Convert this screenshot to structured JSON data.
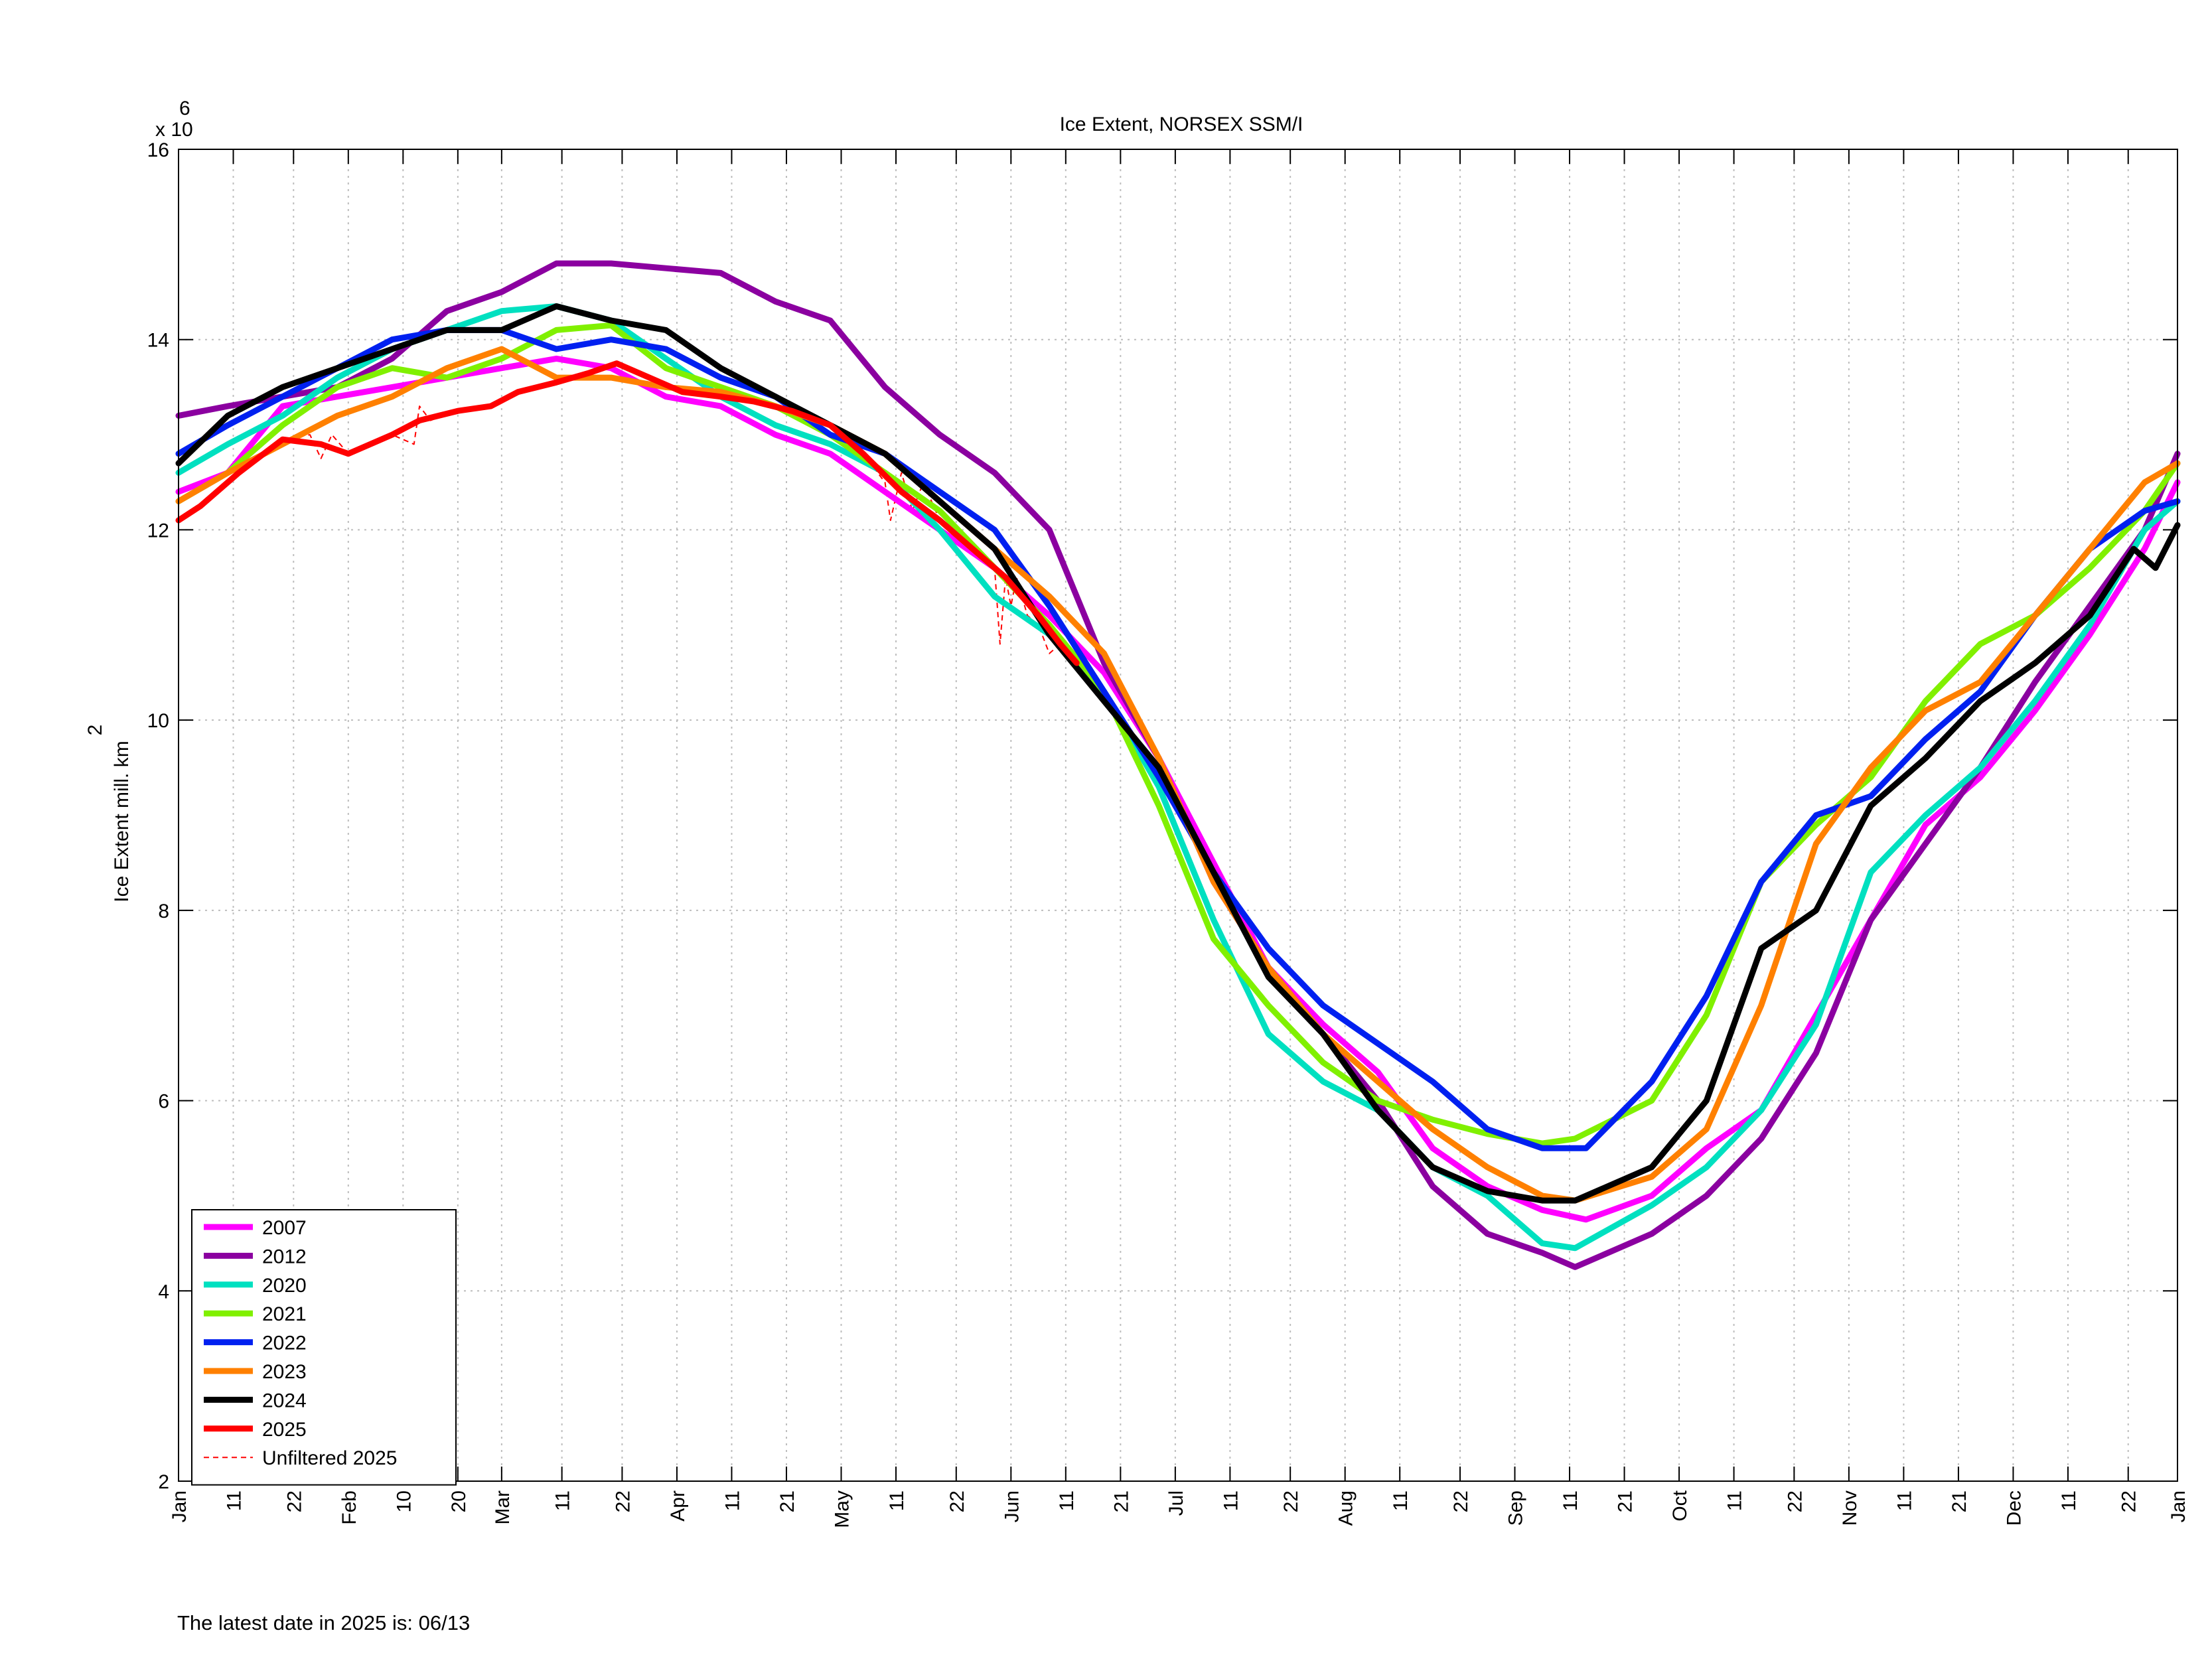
{
  "footer": {
    "latest_date_text": "The latest date in 2025 is: 06/13"
  },
  "chart_data": {
    "type": "line",
    "title": "Ice Extent, NORSEX SSM/I",
    "xlabel": "",
    "ylabel": "Ice Extent mill. km",
    "ylabel_superscript": "2",
    "y_exponent_text": "x 10",
    "y_exponent_power": "6",
    "xlim": [
      1,
      366
    ],
    "ylim": [
      2000000,
      16000000
    ],
    "grid": true,
    "legend_position": "bottom-left",
    "y_ticks": [
      {
        "value": 2000000,
        "label": "2"
      },
      {
        "value": 4000000,
        "label": "4"
      },
      {
        "value": 6000000,
        "label": "6"
      },
      {
        "value": 8000000,
        "label": "8"
      },
      {
        "value": 10000000,
        "label": "10"
      },
      {
        "value": 12000000,
        "label": "12"
      },
      {
        "value": 14000000,
        "label": "14"
      },
      {
        "value": 16000000,
        "label": "16"
      }
    ],
    "x_ticks": [
      {
        "day": 1,
        "label": "Jan"
      },
      {
        "day": 11,
        "label": "11"
      },
      {
        "day": 22,
        "label": "22"
      },
      {
        "day": 32,
        "label": "Feb"
      },
      {
        "day": 42,
        "label": "10"
      },
      {
        "day": 52,
        "label": "20"
      },
      {
        "day": 60,
        "label": "Mar"
      },
      {
        "day": 71,
        "label": "11"
      },
      {
        "day": 82,
        "label": "22"
      },
      {
        "day": 92,
        "label": "Apr"
      },
      {
        "day": 102,
        "label": "11"
      },
      {
        "day": 112,
        "label": "21"
      },
      {
        "day": 122,
        "label": "May"
      },
      {
        "day": 132,
        "label": "11"
      },
      {
        "day": 143,
        "label": "22"
      },
      {
        "day": 153,
        "label": "Jun"
      },
      {
        "day": 163,
        "label": "11"
      },
      {
        "day": 173,
        "label": "21"
      },
      {
        "day": 183,
        "label": "Jul"
      },
      {
        "day": 193,
        "label": "11"
      },
      {
        "day": 204,
        "label": "22"
      },
      {
        "day": 214,
        "label": "Aug"
      },
      {
        "day": 224,
        "label": "11"
      },
      {
        "day": 235,
        "label": "22"
      },
      {
        "day": 245,
        "label": "Sep"
      },
      {
        "day": 255,
        "label": "11"
      },
      {
        "day": 265,
        "label": "21"
      },
      {
        "day": 275,
        "label": "Oct"
      },
      {
        "day": 285,
        "label": "11"
      },
      {
        "day": 296,
        "label": "22"
      },
      {
        "day": 306,
        "label": "Nov"
      },
      {
        "day": 316,
        "label": "11"
      },
      {
        "day": 326,
        "label": "21"
      },
      {
        "day": 336,
        "label": "Dec"
      },
      {
        "day": 346,
        "label": "11"
      },
      {
        "day": 357,
        "label": "22"
      },
      {
        "day": 366,
        "label": "Jan"
      }
    ],
    "series": [
      {
        "name": "2007",
        "color": "#ff00ff",
        "width": 3,
        "x": [
          1,
          10,
          20,
          30,
          40,
          50,
          60,
          70,
          80,
          90,
          100,
          110,
          120,
          130,
          140,
          150,
          160,
          170,
          180,
          190,
          200,
          210,
          220,
          230,
          240,
          250,
          258,
          270,
          280,
          290,
          300,
          310,
          320,
          330,
          340,
          350,
          360,
          366
        ],
        "y": [
          12.4,
          12.6,
          13.3,
          13.4,
          13.5,
          13.6,
          13.7,
          13.8,
          13.7,
          13.4,
          13.3,
          13.0,
          12.8,
          12.4,
          12.0,
          11.6,
          11.1,
          10.5,
          9.6,
          8.5,
          7.4,
          6.8,
          6.3,
          5.5,
          5.1,
          4.85,
          4.75,
          5.0,
          5.5,
          5.9,
          6.9,
          7.9,
          8.9,
          9.4,
          10.1,
          10.9,
          11.8,
          12.5
        ]
      },
      {
        "name": "2012",
        "color": "#8b00a0",
        "width": 3,
        "x": [
          1,
          10,
          20,
          30,
          40,
          50,
          60,
          70,
          80,
          90,
          100,
          110,
          120,
          130,
          140,
          150,
          160,
          170,
          180,
          190,
          200,
          210,
          220,
          230,
          240,
          250,
          256,
          270,
          280,
          290,
          300,
          310,
          320,
          330,
          340,
          350,
          360,
          366
        ],
        "y": [
          13.2,
          13.3,
          13.4,
          13.5,
          13.8,
          14.3,
          14.5,
          14.8,
          14.8,
          14.75,
          14.7,
          14.4,
          14.2,
          13.5,
          13.0,
          12.6,
          12.0,
          10.6,
          9.6,
          8.3,
          7.4,
          6.7,
          6.0,
          5.1,
          4.6,
          4.4,
          4.25,
          4.6,
          5.0,
          5.6,
          6.5,
          7.9,
          8.7,
          9.5,
          10.4,
          11.2,
          12.0,
          12.8
        ]
      },
      {
        "name": "2020",
        "color": "#00e0c0",
        "width": 3,
        "x": [
          1,
          10,
          20,
          30,
          40,
          50,
          60,
          70,
          80,
          90,
          100,
          110,
          120,
          130,
          140,
          150,
          160,
          170,
          180,
          190,
          200,
          210,
          220,
          230,
          240,
          250,
          256,
          270,
          280,
          290,
          300,
          310,
          320,
          330,
          340,
          350,
          360,
          366
        ],
        "y": [
          12.6,
          12.9,
          13.2,
          13.6,
          13.9,
          14.1,
          14.3,
          14.35,
          14.2,
          13.8,
          13.4,
          13.1,
          12.9,
          12.6,
          12.0,
          11.3,
          10.9,
          10.3,
          9.3,
          7.9,
          6.7,
          6.2,
          5.9,
          5.3,
          5.0,
          4.5,
          4.45,
          4.9,
          5.3,
          5.9,
          6.8,
          8.4,
          9.0,
          9.5,
          10.2,
          11.0,
          12.0,
          12.3
        ]
      },
      {
        "name": "2021",
        "color": "#80f000",
        "width": 3,
        "x": [
          1,
          10,
          20,
          30,
          40,
          50,
          60,
          70,
          80,
          90,
          100,
          110,
          120,
          130,
          140,
          150,
          160,
          170,
          180,
          190,
          200,
          210,
          220,
          230,
          240,
          250,
          256,
          270,
          280,
          290,
          300,
          310,
          320,
          330,
          340,
          350,
          360,
          366
        ],
        "y": [
          12.3,
          12.6,
          13.1,
          13.5,
          13.7,
          13.6,
          13.8,
          14.1,
          14.15,
          13.7,
          13.5,
          13.3,
          13.0,
          12.6,
          12.2,
          11.6,
          11.0,
          10.3,
          9.1,
          7.7,
          7.0,
          6.4,
          6.0,
          5.8,
          5.65,
          5.55,
          5.6,
          6.0,
          6.9,
          8.3,
          8.9,
          9.4,
          10.2,
          10.8,
          11.1,
          11.6,
          12.2,
          12.7
        ]
      },
      {
        "name": "2022",
        "color": "#0020f0",
        "width": 3,
        "x": [
          1,
          10,
          20,
          30,
          40,
          50,
          60,
          70,
          80,
          90,
          100,
          110,
          120,
          130,
          140,
          150,
          160,
          170,
          180,
          190,
          200,
          210,
          220,
          230,
          240,
          250,
          258,
          270,
          280,
          290,
          300,
          310,
          320,
          330,
          340,
          350,
          360,
          366
        ],
        "y": [
          12.8,
          13.1,
          13.4,
          13.7,
          14.0,
          14.1,
          14.1,
          13.9,
          14.0,
          13.9,
          13.6,
          13.4,
          13.0,
          12.8,
          12.4,
          12.0,
          11.2,
          10.3,
          9.4,
          8.4,
          7.6,
          7.0,
          6.6,
          6.2,
          5.7,
          5.5,
          5.5,
          6.2,
          7.1,
          8.3,
          9.0,
          9.2,
          9.8,
          10.3,
          11.1,
          11.8,
          12.2,
          12.3
        ]
      },
      {
        "name": "2023",
        "color": "#ff8000",
        "width": 3,
        "x": [
          1,
          10,
          20,
          30,
          40,
          50,
          60,
          70,
          80,
          90,
          100,
          110,
          120,
          130,
          140,
          150,
          160,
          170,
          180,
          190,
          200,
          210,
          220,
          230,
          240,
          250,
          256,
          270,
          280,
          290,
          300,
          310,
          320,
          330,
          340,
          350,
          360,
          366
        ],
        "y": [
          12.3,
          12.6,
          12.9,
          13.2,
          13.4,
          13.7,
          13.9,
          13.6,
          13.6,
          13.5,
          13.45,
          13.3,
          13.1,
          12.8,
          12.3,
          11.8,
          11.3,
          10.7,
          9.6,
          8.3,
          7.4,
          6.7,
          6.2,
          5.7,
          5.3,
          5.0,
          4.95,
          5.2,
          5.7,
          7.0,
          8.7,
          9.5,
          10.1,
          10.4,
          11.1,
          11.8,
          12.5,
          12.7
        ]
      },
      {
        "name": "2024",
        "color": "#000000",
        "width": 3,
        "x": [
          1,
          10,
          20,
          30,
          40,
          50,
          60,
          70,
          80,
          90,
          100,
          110,
          120,
          130,
          140,
          150,
          160,
          170,
          180,
          190,
          200,
          210,
          220,
          230,
          240,
          250,
          256,
          270,
          280,
          290,
          300,
          310,
          320,
          330,
          340,
          350,
          358,
          362,
          366
        ],
        "y": [
          12.7,
          13.2,
          13.5,
          13.7,
          13.9,
          14.1,
          14.1,
          14.35,
          14.2,
          14.1,
          13.7,
          13.4,
          13.1,
          12.8,
          12.3,
          11.8,
          10.9,
          10.2,
          9.5,
          8.4,
          7.3,
          6.7,
          5.9,
          5.3,
          5.05,
          4.95,
          4.95,
          5.3,
          6.0,
          7.6,
          8.0,
          9.1,
          9.6,
          10.2,
          10.6,
          11.1,
          11.8,
          11.6,
          12.05
        ]
      },
      {
        "name": "2025",
        "color": "#ff0000",
        "width": 3,
        "x": [
          1,
          5,
          12,
          20,
          27,
          32,
          40,
          45,
          52,
          58,
          63,
          70,
          76,
          81,
          87,
          93,
          100,
          106,
          113,
          120,
          126,
          133,
          140,
          146,
          152,
          158,
          162,
          165
        ],
        "y": [
          12.1,
          12.25,
          12.6,
          12.95,
          12.9,
          12.8,
          13.0,
          13.15,
          13.25,
          13.3,
          13.45,
          13.55,
          13.65,
          13.75,
          13.6,
          13.45,
          13.4,
          13.35,
          13.25,
          13.1,
          12.8,
          12.4,
          12.1,
          11.8,
          11.5,
          11.1,
          10.8,
          10.6
        ]
      }
    ],
    "unfiltered_series": {
      "name": "Unfiltered 2025",
      "color": "#ff0000",
      "dashed": true,
      "x": [
        1,
        5,
        12,
        20,
        25,
        27,
        29,
        32,
        40,
        44,
        45,
        47,
        52,
        58,
        63,
        70,
        76,
        81,
        87,
        93,
        100,
        106,
        113,
        120,
        126,
        130,
        131,
        133,
        135,
        137,
        140,
        146,
        150,
        151,
        152,
        153,
        154,
        156,
        158,
        160,
        162,
        165
      ],
      "y": [
        12.1,
        12.25,
        12.6,
        12.95,
        13.0,
        12.75,
        13.0,
        12.8,
        13.0,
        12.9,
        13.3,
        13.15,
        13.25,
        13.3,
        13.45,
        13.55,
        13.65,
        13.75,
        13.6,
        13.45,
        13.4,
        13.35,
        13.25,
        13.1,
        12.8,
        12.5,
        12.1,
        12.6,
        12.2,
        12.5,
        12.1,
        11.8,
        11.6,
        10.8,
        11.5,
        11.2,
        11.5,
        11.1,
        11.0,
        10.7,
        10.8,
        10.6
      ]
    },
    "legend": [
      {
        "label": "2007",
        "color": "#ff00ff",
        "dashed": false
      },
      {
        "label": "2012",
        "color": "#8b00a0",
        "dashed": false
      },
      {
        "label": "2020",
        "color": "#00e0c0",
        "dashed": false
      },
      {
        "label": "2021",
        "color": "#80f000",
        "dashed": false
      },
      {
        "label": "2022",
        "color": "#0020f0",
        "dashed": false
      },
      {
        "label": "2023",
        "color": "#ff8000",
        "dashed": false
      },
      {
        "label": "2024",
        "color": "#000000",
        "dashed": false
      },
      {
        "label": "2025",
        "color": "#ff0000",
        "dashed": false
      },
      {
        "label": "Unfiltered 2025",
        "color": "#ff0000",
        "dashed": true
      }
    ]
  }
}
